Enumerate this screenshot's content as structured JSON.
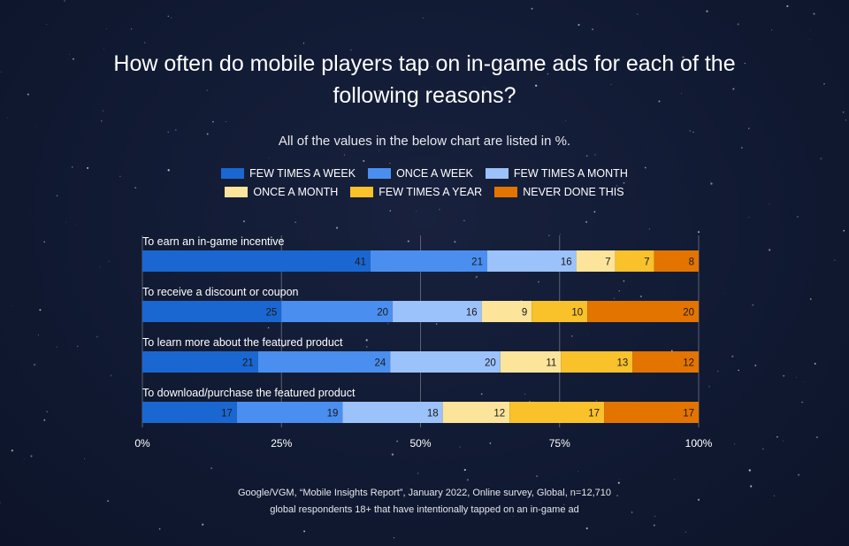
{
  "title": "How often do mobile players tap on in-game ads for each of the following reasons?",
  "subtitle": "All of the values in the below chart are listed in %.",
  "source_line1": "Google/VGM, “Mobile Insights Report”, January 2022, Online survey, Global, n=12,710",
  "source_line2": "global respondents 18+ that have intentionally tapped on an in-game ad",
  "colors": {
    "background": "#111a33",
    "text": "#ffffff",
    "bar_label_dark": "#1a1a1a",
    "grid": "#5a6273"
  },
  "legend": [
    {
      "label": "FEW TIMES A WEEK",
      "color": "#1a67d2"
    },
    {
      "label": "ONCE A WEEK",
      "color": "#4a8ff0"
    },
    {
      "label": "FEW TIMES A MONTH",
      "color": "#9cc2fb"
    },
    {
      "label": "ONCE A MONTH",
      "color": "#fde49b"
    },
    {
      "label": "FEW TIMES A YEAR",
      "color": "#f9c12a"
    },
    {
      "label": "NEVER DONE THIS",
      "color": "#e37400"
    }
  ],
  "chart_data": {
    "type": "bar",
    "orientation": "horizontal",
    "stacked": true,
    "categories": [
      "To earn an in-game incentive",
      "To receive a discount or coupon",
      "To learn more about the featured product",
      "To download/purchase the featured product"
    ],
    "series": [
      {
        "name": "FEW TIMES A WEEK",
        "values": [
          41,
          25,
          21,
          17
        ]
      },
      {
        "name": "ONCE A WEEK",
        "values": [
          21,
          20,
          24,
          19
        ]
      },
      {
        "name": "FEW TIMES A MONTH",
        "values": [
          16,
          16,
          20,
          18
        ]
      },
      {
        "name": "ONCE A MONTH",
        "values": [
          7,
          9,
          11,
          12
        ]
      },
      {
        "name": "FEW TIMES A YEAR",
        "values": [
          7,
          10,
          13,
          17
        ]
      },
      {
        "name": "NEVER DONE THIS",
        "values": [
          8,
          20,
          12,
          17
        ]
      }
    ],
    "xlim": [
      0,
      100
    ],
    "x_ticks": [
      "0%",
      "25%",
      "50%",
      "75%",
      "100%"
    ],
    "legend_position": "top",
    "grid": true
  }
}
